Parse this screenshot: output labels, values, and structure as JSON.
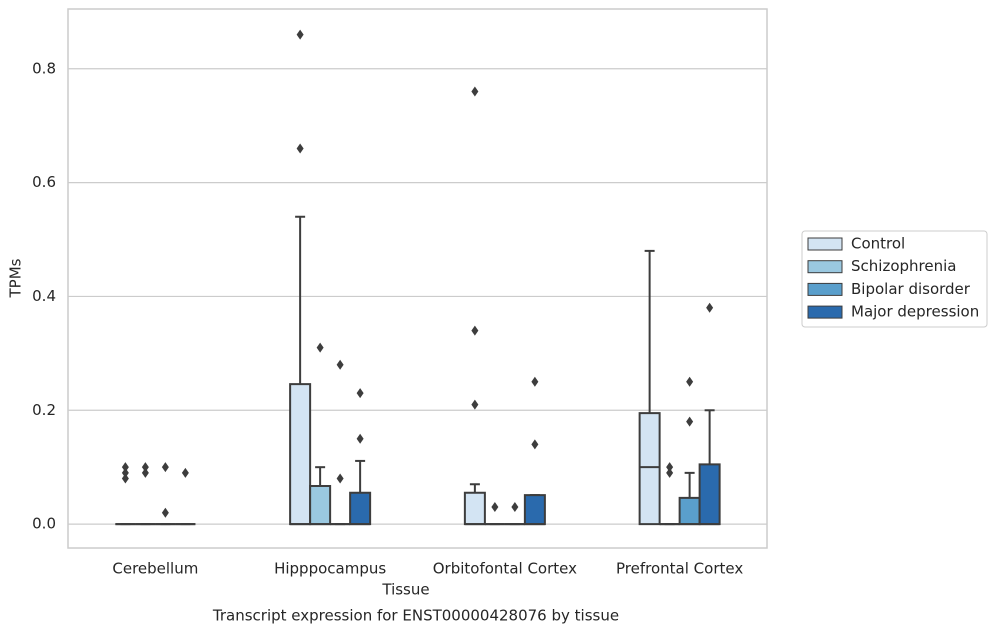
{
  "chart_data": {
    "type": "box",
    "title": "Transcript expression for ENST00000428076 by tissue",
    "xlabel": "Tissue",
    "ylabel": "TPMs",
    "categories": [
      "Cerebellum",
      "Hipppocampus",
      "Orbitofontal Cortex",
      "Prefrontal Cortex"
    ],
    "ylim": [
      -0.042,
      0.905
    ],
    "yticks": [
      {
        "value": 0,
        "label": "0.0"
      },
      0.2,
      0.4,
      0.6,
      0.8
    ],
    "grid": true,
    "legend": "right",
    "series": [
      {
        "name": "Control",
        "color": "#d3e4f3",
        "min": [
          0,
          0,
          0,
          0
        ],
        "q1": [
          0,
          0,
          0,
          0
        ],
        "median": [
          0,
          0,
          0,
          0.1
        ],
        "q3": [
          0,
          0.246,
          0.055,
          0.195
        ],
        "max": [
          0,
          0.54,
          0.07,
          0.48
        ],
        "outliers": [
          [
            0.1,
            0.09,
            0.08
          ],
          [
            0.86,
            0.66
          ],
          [
            0.76,
            0.34,
            0.21
          ],
          []
        ]
      },
      {
        "name": "Schizophrenia",
        "color": "#9ac8e0",
        "min": [
          0,
          0,
          0,
          0
        ],
        "q1": [
          0,
          0,
          0,
          0
        ],
        "median": [
          0,
          0,
          0,
          0
        ],
        "q3": [
          0,
          0.067,
          0,
          0
        ],
        "max": [
          0,
          0.1,
          0,
          0
        ],
        "outliers": [
          [
            0.1,
            0.09
          ],
          [
            0.31
          ],
          [
            0.03
          ],
          [
            0.1,
            0.09
          ]
        ]
      },
      {
        "name": "Bipolar disorder",
        "color": "#5a9fcc",
        "min": [
          0,
          0,
          0,
          0
        ],
        "q1": [
          0,
          0,
          0,
          0
        ],
        "median": [
          0,
          0,
          0,
          0
        ],
        "q3": [
          0,
          0,
          0,
          0.046
        ],
        "max": [
          0,
          0,
          0,
          0.09
        ],
        "outliers": [
          [
            0.1,
            0.02
          ],
          [
            0.28,
            0.08
          ],
          [
            0.03
          ],
          [
            0.25,
            0.18
          ]
        ]
      },
      {
        "name": "Major depression",
        "color": "#2a6aad",
        "min": [
          0,
          0,
          0,
          0
        ],
        "q1": [
          0,
          0,
          0,
          0
        ],
        "median": [
          0,
          0,
          0,
          0
        ],
        "q3": [
          0,
          0.055,
          0.051,
          0.105
        ],
        "max": [
          0,
          0.111,
          0.051,
          0.2
        ],
        "outliers": [
          [
            0.09
          ],
          [
            0.23,
            0.15
          ],
          [
            0.25,
            0.14
          ],
          [
            0.38
          ]
        ]
      }
    ]
  }
}
